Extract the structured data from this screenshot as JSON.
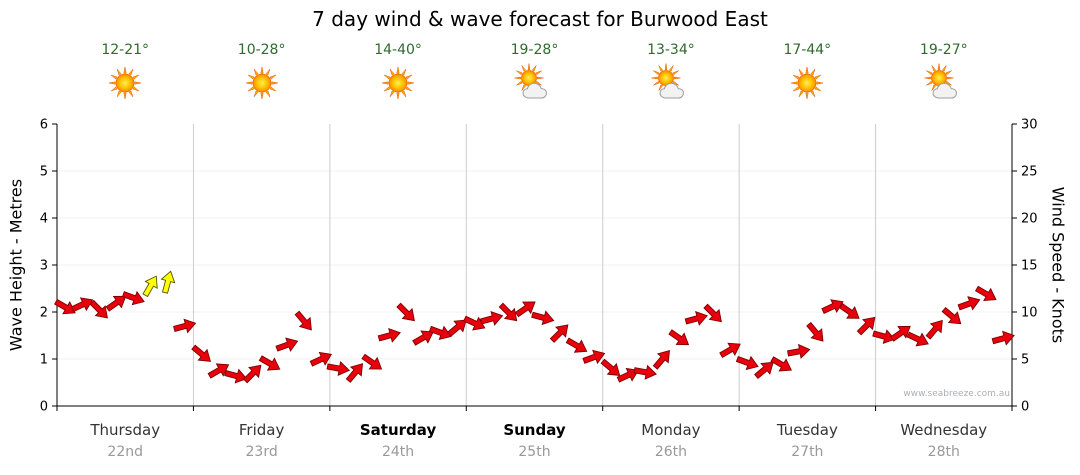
{
  "header": {
    "title": "7 day wind & wave forecast for Burwood East"
  },
  "watermark": "www.seabreeze.com.au",
  "colors": {
    "temp_text": "#2e6b2e",
    "arrow": "#e8000d",
    "arrow_outline": "#7d0000",
    "arrow_highlight": "#ffff00",
    "arrow_highlight_outline": "#555500",
    "day_separator": "#cccccc",
    "axis": "#000000"
  },
  "axes": {
    "left_label": "Wave Height - Metres",
    "right_label": "Wind Speed - Knots",
    "left_ticks": [
      0,
      1,
      2,
      3,
      4,
      5,
      6
    ],
    "right_ticks": [
      0,
      5,
      10,
      15,
      20,
      25,
      30
    ]
  },
  "days": [
    {
      "name": "Thursday",
      "date": "22nd",
      "temp": "12-21°",
      "icon": "sunny",
      "weekend": false
    },
    {
      "name": "Friday",
      "date": "23rd",
      "temp": "10-28°",
      "icon": "sunny",
      "weekend": false
    },
    {
      "name": "Saturday",
      "date": "24th",
      "temp": "14-40°",
      "icon": "sunny",
      "weekend": true
    },
    {
      "name": "Sunday",
      "date": "25th",
      "temp": "19-28°",
      "icon": "partly-cloudy",
      "weekend": true
    },
    {
      "name": "Monday",
      "date": "26th",
      "temp": "13-34°",
      "icon": "partly-cloudy",
      "weekend": false
    },
    {
      "name": "Tuesday",
      "date": "27th",
      "temp": "17-44°",
      "icon": "sunny",
      "weekend": false
    },
    {
      "name": "Wednesday",
      "date": "28th",
      "temp": "19-27°",
      "icon": "partly-cloudy",
      "weekend": false
    }
  ],
  "chart_data": {
    "type": "line",
    "title": "7 day wind & wave forecast for Burwood East",
    "categories": [
      "Thursday 22nd",
      "Friday 23rd",
      "Saturday 24th",
      "Sunday 25th",
      "Monday 26th",
      "Tuesday 27th",
      "Wednesday 28th"
    ],
    "samples_per_day": 8,
    "ylabel_left": "Wave Height - Metres",
    "ylabel_right": "Wind Speed - Knots",
    "ylim_left": [
      0,
      6
    ],
    "ylim_right": [
      0,
      30
    ],
    "grid": "vertical day separators",
    "legend": "none",
    "series": [
      {
        "name": "Wind speed (knots), drawn as red wind arrows",
        "color": "#e8000d",
        "values": [
          10.5,
          10.8,
          10.2,
          11.0,
          11.5,
          12.8,
          13.2,
          8.5,
          5.5,
          3.8,
          3.2,
          3.5,
          4.5,
          6.5,
          9.0,
          5.0,
          4.0,
          3.6,
          4.6,
          7.5,
          9.9,
          7.3,
          7.8,
          8.4,
          8.8,
          9.3,
          9.9,
          10.4,
          9.4,
          7.8,
          6.4,
          5.2,
          4.0,
          3.3,
          3.6,
          5.0,
          7.2,
          9.3,
          9.8,
          6.0,
          4.6,
          3.9,
          4.4,
          5.8,
          7.8,
          10.6,
          10.0,
          8.6,
          7.4,
          7.8,
          7.1,
          8.2,
          9.5,
          10.9,
          11.9,
          7.2
        ],
        "directions": [
          30,
          -25,
          45,
          -35,
          20,
          -60,
          -75,
          -15,
          40,
          -30,
          15,
          -45,
          30,
          -20,
          50,
          -25,
          10,
          -50,
          35,
          -15,
          45,
          -30,
          20,
          -40,
          25,
          -15,
          45,
          -35,
          15,
          -45,
          30,
          -20,
          40,
          -25,
          10,
          -50,
          35,
          -15,
          45,
          -30,
          20,
          -40,
          30,
          -10,
          50,
          -25,
          35,
          -45,
          15,
          -35,
          25,
          -50,
          40,
          -20,
          30,
          -15
        ]
      }
    ],
    "highlight_indices": [
      5,
      6
    ],
    "highlight_color": "#ffff00",
    "highlight_note": "two yellow arrows at Thursday peak"
  }
}
